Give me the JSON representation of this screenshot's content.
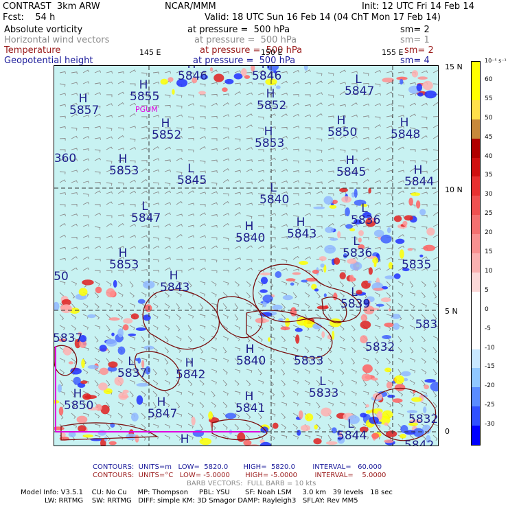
{
  "header": {
    "model": "CONTRAST  3km ARW",
    "fcst": "Fcst:    54 h",
    "center": "NCAR/MMM",
    "init": "Init: 12 UTC Fri 14 Feb 14",
    "valid": "Valid: 18 UTC Sun 16 Feb 14 (04 ChT Mon 17 Feb 14)",
    "fields": [
      {
        "name": "Absolute vorticity",
        "level": "at pressure =  500 hPa",
        "sm": "sm= 2",
        "color": "#000000"
      },
      {
        "name": "Horizontal wind vectors",
        "level": "at pressure =  500 hPa",
        "sm": "sm= 1",
        "color": "#8c8c8c"
      },
      {
        "name": "Temperature",
        "level": "at pressure =  500 hPa",
        "sm": "sm= 2",
        "color": "#9a1a1a"
      },
      {
        "name": "Geopotential height",
        "level": "at pressure =  500 hPa",
        "sm": "sm= 4",
        "color": "#1a1a9a"
      }
    ]
  },
  "axes": {
    "lon_labels": [
      "145 E",
      "150 E",
      "155 E"
    ],
    "lat_labels": [
      "15 N",
      "10 N",
      "5 N",
      "0"
    ],
    "station": "PGUM"
  },
  "colorbar": {
    "unit": "10⁻⁵ s⁻¹",
    "ticks": [
      "60",
      "55",
      "50",
      "45",
      "40",
      "35",
      "30",
      "25",
      "20",
      "15",
      "10",
      "5",
      "0",
      "-5",
      "-10",
      "-15",
      "-20",
      "-25",
      "-30"
    ],
    "colors": [
      "#ffff00",
      "#ffff00",
      "#ffe04a",
      "#c8883a",
      "#b00000",
      "#d01010",
      "#e83030",
      "#f05050",
      "#f47070",
      "#f89090",
      "#fab0b0",
      "#fcd8d8",
      "#ffffff",
      "#ffffff",
      "#ffffff",
      "#c8e8ff",
      "#90c8ff",
      "#5a8cff",
      "#3050ff",
      "#0000ff"
    ]
  },
  "highs_lows": [
    {
      "t": "H",
      "v": "5855"
    },
    {
      "t": "H",
      "v": "5846"
    },
    {
      "t": "H",
      "v": "5846"
    },
    {
      "t": "L",
      "v": "5847"
    },
    {
      "t": "H",
      "v": "5857"
    },
    {
      "t": "H",
      "v": "5852"
    },
    {
      "t": "H",
      "v": "5852"
    },
    {
      "t": "H",
      "v": "5853"
    },
    {
      "t": "H",
      "v": "5850"
    },
    {
      "t": "H",
      "v": "5848"
    },
    {
      "t": "",
      "v": "360"
    },
    {
      "t": "H",
      "v": "5853"
    },
    {
      "t": "L",
      "v": "5845"
    },
    {
      "t": "H",
      "v": "5845"
    },
    {
      "t": "H",
      "v": "5844"
    },
    {
      "t": "L",
      "v": "5840"
    },
    {
      "t": "L",
      "v": "5847"
    },
    {
      "t": "H",
      "v": "5840"
    },
    {
      "t": "H",
      "v": "5843"
    },
    {
      "t": "L",
      "v": "5836"
    },
    {
      "t": "L",
      "v": "5836"
    },
    {
      "t": "H",
      "v": "5853"
    },
    {
      "t": "",
      "v": "5835"
    },
    {
      "t": "",
      "v": "50"
    },
    {
      "t": "H",
      "v": "5843"
    },
    {
      "t": "L",
      "v": "5839"
    },
    {
      "t": "",
      "v": "5837"
    },
    {
      "t": "H",
      "v": "5840"
    },
    {
      "t": "",
      "v": "5833"
    },
    {
      "t": "",
      "v": "5832"
    },
    {
      "t": "",
      "v": "583"
    },
    {
      "t": "L",
      "v": "5837"
    },
    {
      "t": "H",
      "v": "5842"
    },
    {
      "t": "L",
      "v": "5833"
    },
    {
      "t": "H",
      "v": "5850"
    },
    {
      "t": "H",
      "v": "5847"
    },
    {
      "t": "H",
      "v": "5841"
    },
    {
      "t": "L",
      "v": "5844"
    },
    {
      "t": "",
      "v": "5832"
    },
    {
      "t": "H",
      "v": ""
    },
    {
      "t": "",
      "v": "5842"
    }
  ],
  "footer": {
    "contours1": "CONTOURS:  UNITS=m   LOW=  5820.0       HIGH=  5820.0        INTERVAL=   60.000",
    "contours2": "CONTOURS:  UNITS=°C   LOW= -5.0000       HIGH= -5.0000        INTERVAL=    5.0000",
    "barbs": "BARB VECTORS:  FULL BARB = 10 kts",
    "model_info1": "Model Info: V3.5.1    CU: No Cu     MP: Thompson     PBL: YSU       SF: Noah LSM     3.0 km   39 levels   18 sec",
    "model_info2": "           LW: RRTMG    SW: RRTMG   DIFF: simple KM: 3D Smagor DAMP: Rayleigh3   SFLAY: Rev MM5"
  }
}
